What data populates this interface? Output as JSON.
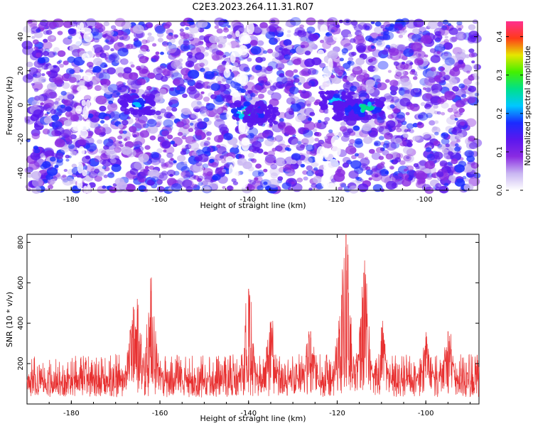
{
  "title": "C2E3.2023.264.11.31.R07",
  "colors": {
    "background": "#ffffff",
    "snr_line": "#e83030",
    "colormap": [
      "#ffffff",
      "#c9b6f2",
      "#8a2be2",
      "#5a17ee",
      "#1a2cff",
      "#00c8ff",
      "#00e08a",
      "#44f000",
      "#e6e600",
      "#ff3a1a",
      "#ff2f8f"
    ]
  },
  "chart_data": [
    {
      "type": "heatmap",
      "xlabel": "Height of straight line (km)",
      "ylabel": "Frequency (Hz)",
      "xlim": [
        -190,
        -88
      ],
      "ylim": [
        -50,
        49
      ],
      "xticks": [
        -180,
        -160,
        -140,
        -120,
        -100
      ],
      "yticks": [
        -40,
        -20,
        0,
        20,
        40
      ],
      "colorbar": {
        "label": "Normalized spectral amplitude",
        "range": [
          0.0,
          0.44
        ],
        "ticks": [
          0.0,
          0.1,
          0.2,
          0.3,
          0.4
        ],
        "tick_labels": [
          "0.0",
          "0.1",
          "0.2",
          "0.3",
          "0.4"
        ]
      },
      "hotspots": [
        {
          "x": -165,
          "y": 0,
          "peak": 0.22
        },
        {
          "x": -140,
          "y": -4,
          "peak": 0.33
        },
        {
          "x": -137,
          "y": -6,
          "peak": 0.18
        },
        {
          "x": -120,
          "y": 2,
          "peak": 0.25
        },
        {
          "x": -117,
          "y": -3,
          "peak": 0.2
        },
        {
          "x": -113,
          "y": -2,
          "peak": 0.3
        }
      ]
    },
    {
      "type": "line",
      "xlabel": "Height of straight line (km)",
      "ylabel": "SNR (10 * v/v)",
      "xlim": [
        -190,
        -88
      ],
      "ylim": [
        0,
        840
      ],
      "xticks": [
        -180,
        -160,
        -140,
        -120,
        -100
      ],
      "yticks": [
        200,
        400,
        600,
        800
      ],
      "baseline": 130,
      "peaks": [
        {
          "x": -166,
          "y": 480
        },
        {
          "x": -165,
          "y": 470
        },
        {
          "x": -162,
          "y": 560
        },
        {
          "x": -140,
          "y": 570
        },
        {
          "x": -135,
          "y": 400
        },
        {
          "x": -126,
          "y": 360
        },
        {
          "x": -119,
          "y": 540
        },
        {
          "x": -118,
          "y": 840
        },
        {
          "x": -114,
          "y": 650
        },
        {
          "x": -110,
          "y": 380
        },
        {
          "x": -100,
          "y": 330
        },
        {
          "x": -95,
          "y": 360
        }
      ]
    }
  ]
}
